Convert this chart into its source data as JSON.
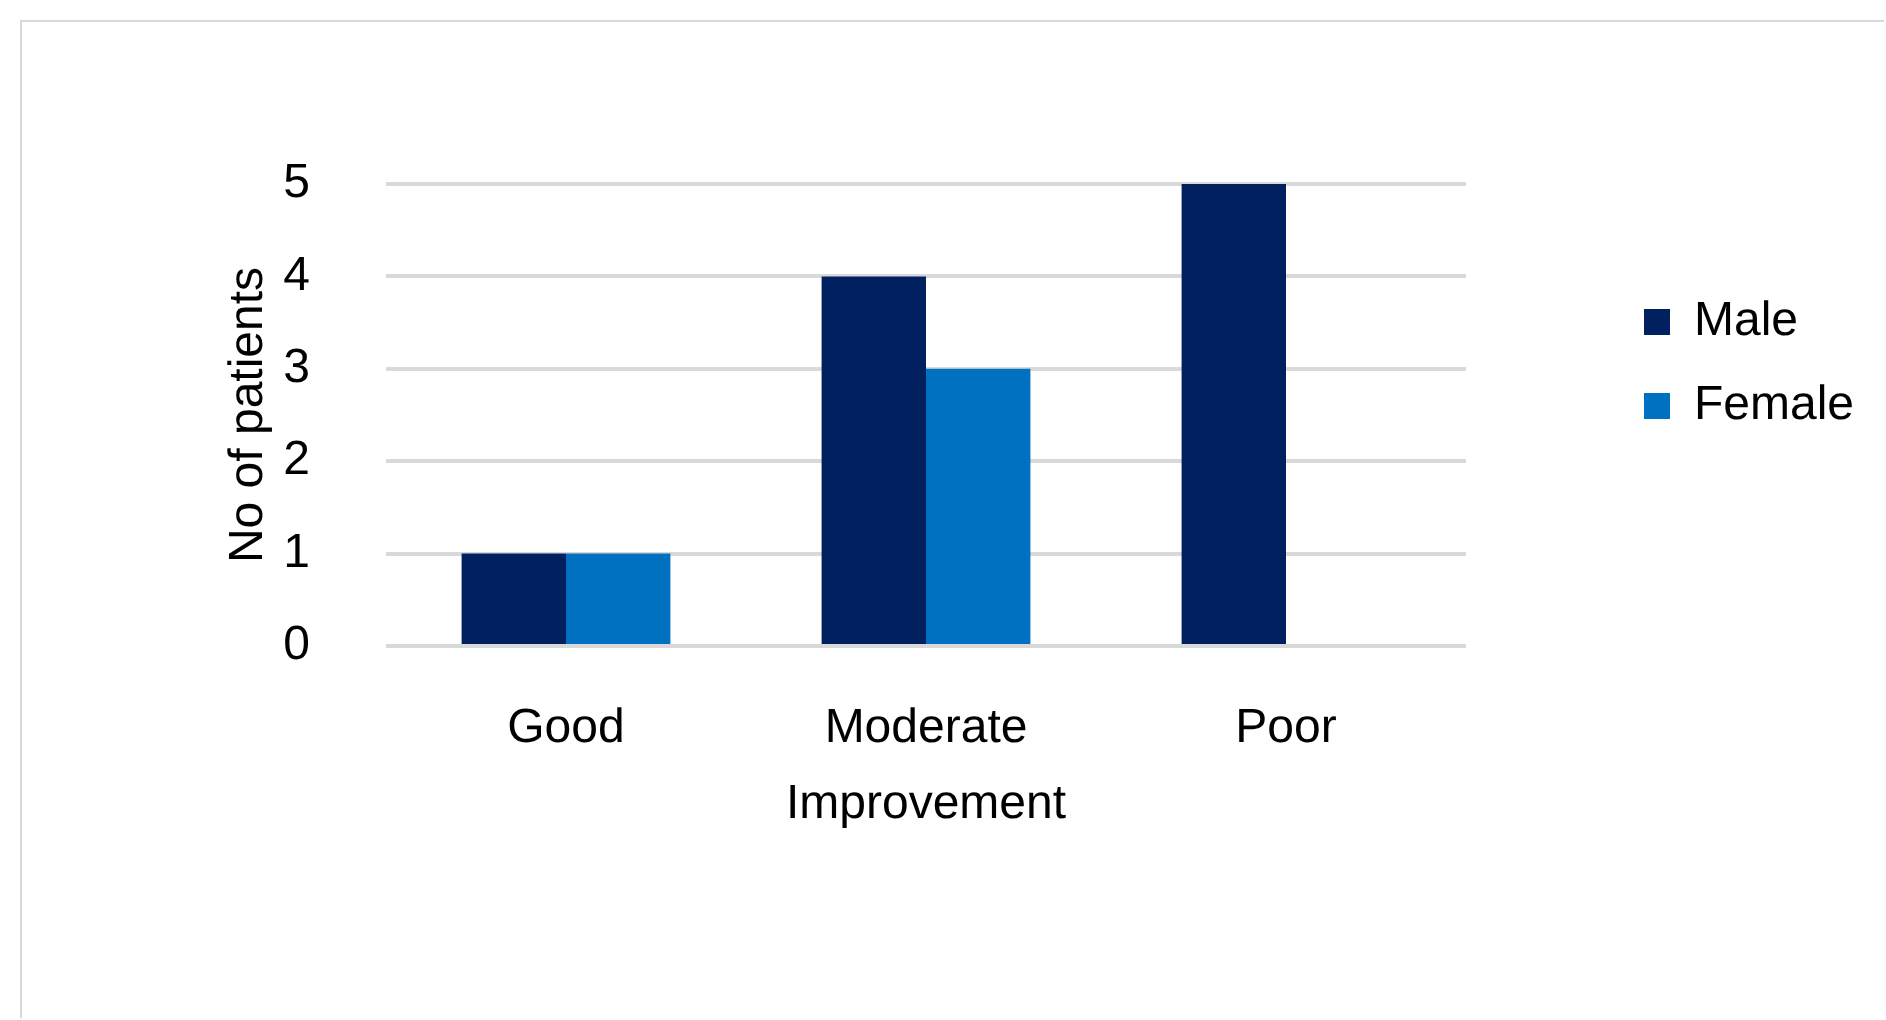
{
  "chart_data": {
    "type": "bar",
    "ylabel": "No of patients",
    "categories": [
      "Good",
      "Moderate Improvement",
      "Poor"
    ],
    "series": [
      {
        "name": "Male",
        "color": "#002060",
        "values": [
          1,
          4,
          5
        ]
      },
      {
        "name": "Female",
        "color": "#0070c0",
        "values": [
          1,
          3,
          0
        ]
      }
    ],
    "ylim": [
      0,
      5
    ],
    "yticks": [
      0,
      1,
      2,
      3,
      4,
      5
    ],
    "grid": "y",
    "legend": "right"
  }
}
